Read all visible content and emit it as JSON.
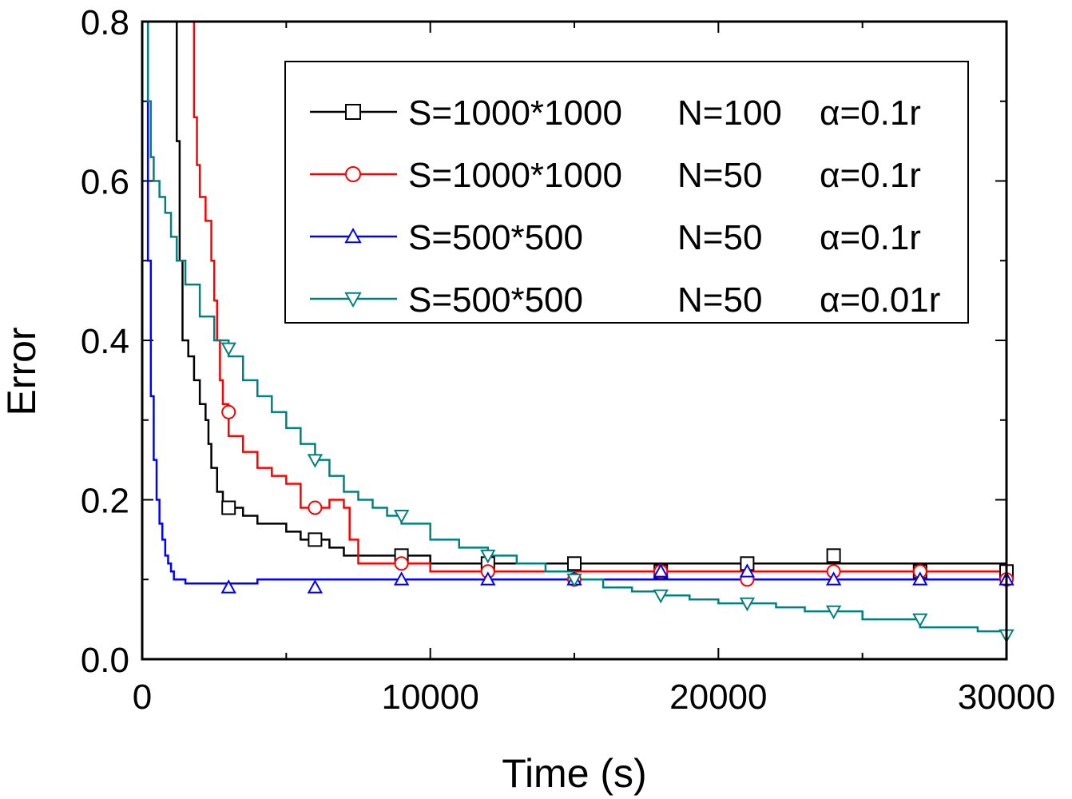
{
  "chart_data": {
    "type": "line",
    "title": "",
    "xlabel": "Time (s)",
    "ylabel": "Error",
    "xlim": [
      0,
      30000
    ],
    "ylim": [
      0,
      0.8
    ],
    "xticks": [
      0,
      10000,
      20000,
      30000
    ],
    "xtick_labels": [
      "0",
      "10000",
      "20000",
      "30000"
    ],
    "yticks": [
      0.0,
      0.2,
      0.4,
      0.6,
      0.8
    ],
    "ytick_labels": [
      "0.0",
      "0.2",
      "0.4",
      "0.6",
      "0.8"
    ],
    "legend_position": "top-right",
    "series": [
      {
        "name": "S=1000*1000 N=100 α=0.1r",
        "legend": {
          "s": "S=1000*1000",
          "n": "N=100",
          "a": "α=0.1r"
        },
        "color": "#000000",
        "marker": "square",
        "x": [
          1000,
          1150,
          1200,
          1300,
          1400,
          1600,
          1800,
          2000,
          2200,
          2300,
          2400,
          2600,
          2800,
          3000,
          3500,
          4000,
          4500,
          5000,
          5500,
          6000,
          6500,
          7000,
          7500,
          8000,
          9000,
          10000,
          11000,
          12000,
          13000,
          14000,
          15000,
          16000,
          17000,
          18000,
          19000,
          20000,
          21000,
          22000,
          23000,
          24000,
          25000,
          26000,
          27000,
          28000,
          29000,
          30000
        ],
        "y": [
          0.8,
          0.8,
          0.65,
          0.5,
          0.4,
          0.38,
          0.35,
          0.32,
          0.3,
          0.27,
          0.24,
          0.21,
          0.19,
          0.19,
          0.18,
          0.17,
          0.17,
          0.16,
          0.15,
          0.15,
          0.14,
          0.13,
          0.13,
          0.13,
          0.13,
          0.12,
          0.12,
          0.12,
          0.12,
          0.12,
          0.12,
          0.12,
          0.12,
          0.12,
          0.12,
          0.12,
          0.12,
          0.12,
          0.12,
          0.12,
          0.12,
          0.12,
          0.12,
          0.12,
          0.12,
          0.12
        ],
        "markers_x": [
          3000,
          6000,
          9000,
          12000,
          15000,
          18000,
          21000,
          24000,
          27000,
          30000
        ],
        "markers_y": [
          0.19,
          0.15,
          0.13,
          0.12,
          0.12,
          0.11,
          0.12,
          0.13,
          0.11,
          0.11
        ]
      },
      {
        "name": "S=1000*1000 N=50 α=0.1r",
        "legend": {
          "s": "S=1000*1000",
          "n": "N=50",
          "a": "α=0.1r"
        },
        "color": "#ff0000",
        "marker": "circle",
        "x": [
          1700,
          1800,
          1900,
          2000,
          2200,
          2400,
          2500,
          2600,
          2700,
          2800,
          3000,
          3500,
          4000,
          4500,
          5000,
          5500,
          6000,
          6500,
          7000,
          7200,
          7500,
          8000,
          9000,
          10000,
          11000,
          12000,
          13000,
          14000,
          15000,
          16000,
          17000,
          18000,
          19000,
          20000,
          21000,
          22000,
          23000,
          24000,
          25000,
          26000,
          27000,
          28000,
          29000,
          30000
        ],
        "y": [
          0.8,
          0.68,
          0.62,
          0.58,
          0.55,
          0.5,
          0.45,
          0.4,
          0.35,
          0.32,
          0.28,
          0.26,
          0.24,
          0.23,
          0.22,
          0.19,
          0.19,
          0.2,
          0.19,
          0.15,
          0.12,
          0.12,
          0.12,
          0.11,
          0.11,
          0.11,
          0.11,
          0.11,
          0.11,
          0.11,
          0.11,
          0.11,
          0.11,
          0.11,
          0.11,
          0.11,
          0.11,
          0.11,
          0.11,
          0.11,
          0.11,
          0.11,
          0.11,
          0.11
        ],
        "markers_x": [
          3000,
          6000,
          9000,
          12000,
          15000,
          18000,
          21000,
          24000,
          27000,
          30000
        ],
        "markers_y": [
          0.31,
          0.19,
          0.12,
          0.11,
          0.1,
          0.11,
          0.1,
          0.11,
          0.11,
          0.1
        ]
      },
      {
        "name": "S=500*500 N=50 α=0.1r",
        "legend": {
          "s": "S=500*500",
          "n": "N=50",
          "a": "α=0.1r"
        },
        "color": "#0000ff",
        "marker": "triangle-up",
        "x": [
          0,
          100,
          200,
          300,
          400,
          500,
          600,
          700,
          800,
          900,
          1000,
          1100,
          1300,
          1500,
          2000,
          3000,
          4000,
          5000,
          6000,
          7000,
          8000,
          9000,
          10000,
          11000,
          12000,
          13000,
          14000,
          15000,
          16000,
          17000,
          18000,
          19000,
          20000,
          21000,
          22000,
          23000,
          24000,
          25000,
          26000,
          27000,
          28000,
          29000,
          30000
        ],
        "y": [
          0.8,
          0.8,
          0.5,
          0.33,
          0.25,
          0.2,
          0.17,
          0.15,
          0.13,
          0.12,
          0.11,
          0.1,
          0.1,
          0.095,
          0.095,
          0.095,
          0.1,
          0.1,
          0.1,
          0.1,
          0.1,
          0.1,
          0.1,
          0.1,
          0.1,
          0.1,
          0.1,
          0.1,
          0.1,
          0.1,
          0.1,
          0.1,
          0.1,
          0.1,
          0.1,
          0.1,
          0.1,
          0.1,
          0.1,
          0.1,
          0.1,
          0.1,
          0.1
        ],
        "markers_x": [
          3000,
          6000,
          9000,
          12000,
          15000,
          18000,
          21000,
          24000,
          27000,
          30000
        ],
        "markers_y": [
          0.09,
          0.09,
          0.1,
          0.1,
          0.1,
          0.11,
          0.11,
          0.1,
          0.1,
          0.1
        ]
      },
      {
        "name": "S=500*500 N=50 α=0.01r",
        "legend": {
          "s": "S=500*500",
          "n": "N=50",
          "a": "α=0.01r"
        },
        "color": "#008080",
        "marker": "triangle-down",
        "x": [
          100,
          200,
          300,
          400,
          600,
          800,
          1000,
          1200,
          1500,
          2000,
          2500,
          3000,
          3500,
          4000,
          4500,
          5000,
          5500,
          6000,
          6500,
          7000,
          7500,
          8000,
          8500,
          9000,
          10000,
          11000,
          12000,
          13000,
          14000,
          15000,
          16000,
          17000,
          18000,
          19000,
          20000,
          21000,
          22000,
          23000,
          24000,
          25000,
          26000,
          27000,
          28000,
          29000,
          30000
        ],
        "y": [
          0.8,
          0.7,
          0.63,
          0.6,
          0.58,
          0.56,
          0.53,
          0.5,
          0.47,
          0.43,
          0.4,
          0.38,
          0.35,
          0.33,
          0.31,
          0.29,
          0.27,
          0.25,
          0.23,
          0.21,
          0.2,
          0.19,
          0.18,
          0.17,
          0.15,
          0.14,
          0.13,
          0.12,
          0.11,
          0.1,
          0.09,
          0.085,
          0.08,
          0.075,
          0.07,
          0.07,
          0.065,
          0.06,
          0.06,
          0.05,
          0.05,
          0.04,
          0.04,
          0.035,
          0.03
        ],
        "markers_x": [
          3000,
          6000,
          9000,
          12000,
          15000,
          18000,
          21000,
          24000,
          27000,
          30000
        ],
        "markers_y": [
          0.39,
          0.25,
          0.18,
          0.13,
          0.1,
          0.08,
          0.07,
          0.06,
          0.05,
          0.03
        ]
      }
    ]
  }
}
